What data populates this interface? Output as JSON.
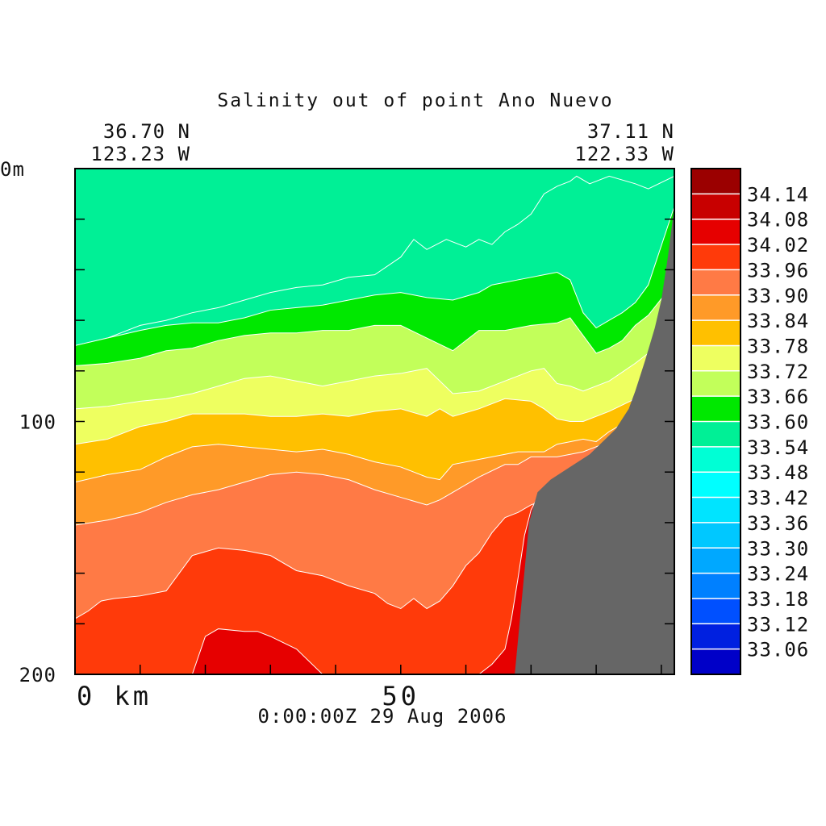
{
  "chart_data": {
    "type": "heatmap",
    "title": "Salinity out of point Ano Nuevo",
    "start_location": {
      "lat": "36.70 N",
      "lon": "123.23 W"
    },
    "end_location": {
      "lat": "37.11 N",
      "lon": "122.33 W"
    },
    "timestamp": "0:00:00Z  29 Aug 2006",
    "x_axis": {
      "range": [
        0,
        92
      ],
      "ticks": [
        {
          "value": 0,
          "label": "0 km"
        },
        {
          "value": 50,
          "label": "50"
        }
      ],
      "minor_step": 10
    },
    "y_axis": {
      "range": [
        0,
        200
      ],
      "inverted": true,
      "ticks": [
        {
          "value": 0,
          "label": "0m"
        },
        {
          "value": 100,
          "label": "100"
        },
        {
          "value": 200,
          "label": "200"
        }
      ],
      "minor_step": 20
    },
    "colorbar": {
      "levels": [
        "34.14",
        "34.08",
        "34.02",
        "33.96",
        "33.90",
        "33.84",
        "33.78",
        "33.72",
        "33.66",
        "33.60",
        "33.54",
        "33.48",
        "33.42",
        "33.36",
        "33.30",
        "33.24",
        "33.18",
        "33.12",
        "33.06"
      ],
      "colors": [
        "#9b0000",
        "#c80000",
        "#e60000",
        "#ff3a0a",
        "#ff7a45",
        "#ff9a28",
        "#ffc000",
        "#eeff60",
        "#c2ff5a",
        "#00e800",
        "#00f096",
        "#00ffd5",
        "#00ffff",
        "#00e4ff",
        "#00c8ff",
        "#00a8ff",
        "#0080ff",
        "#0050ff",
        "#0020e0",
        "#0000c8"
      ]
    },
    "bands": [
      {
        "min": null,
        "max": 33.42,
        "profile": []
      },
      {
        "min": 33.42,
        "max": 33.48,
        "profile": []
      },
      {
        "min": 33.48,
        "max": 33.54,
        "profile": []
      },
      {
        "min": 33.54,
        "max": 33.6,
        "profile": [
          [
            0,
            70
          ],
          [
            5,
            67
          ],
          [
            10,
            62
          ],
          [
            14,
            60
          ],
          [
            18,
            57
          ],
          [
            22,
            55
          ],
          [
            26,
            52
          ],
          [
            30,
            49
          ],
          [
            34,
            47
          ],
          [
            38,
            46
          ],
          [
            42,
            43
          ],
          [
            46,
            42
          ],
          [
            50,
            35
          ],
          [
            52,
            28
          ],
          [
            54,
            32
          ],
          [
            57,
            28
          ],
          [
            60,
            31
          ],
          [
            62,
            28
          ],
          [
            64,
            30
          ],
          [
            66,
            25
          ],
          [
            68,
            22
          ],
          [
            70,
            18
          ],
          [
            72,
            10
          ],
          [
            74,
            7
          ],
          [
            76,
            5
          ],
          [
            77,
            3
          ],
          [
            79,
            6
          ],
          [
            82,
            3
          ],
          [
            86,
            6
          ],
          [
            88,
            8
          ],
          [
            92,
            3
          ]
        ]
      },
      {
        "min": 33.6,
        "max": 33.66,
        "profile": [
          [
            0,
            70
          ],
          [
            5,
            67
          ],
          [
            10,
            64
          ],
          [
            14,
            62
          ],
          [
            18,
            61
          ],
          [
            22,
            61
          ],
          [
            26,
            59
          ],
          [
            30,
            56
          ],
          [
            34,
            55
          ],
          [
            38,
            54
          ],
          [
            42,
            52
          ],
          [
            46,
            50
          ],
          [
            50,
            49
          ],
          [
            54,
            51
          ],
          [
            58,
            52
          ],
          [
            62,
            49
          ],
          [
            64,
            46
          ],
          [
            66,
            45
          ],
          [
            68,
            44
          ],
          [
            70,
            43
          ],
          [
            72,
            42
          ],
          [
            74,
            41
          ],
          [
            76,
            44
          ],
          [
            78,
            57
          ],
          [
            80,
            63
          ],
          [
            82,
            60
          ],
          [
            84,
            57
          ],
          [
            86,
            53
          ],
          [
            88,
            46
          ],
          [
            92,
            15
          ]
        ]
      },
      {
        "min": 33.66,
        "max": 33.72,
        "profile": [
          [
            0,
            78
          ],
          [
            5,
            77
          ],
          [
            10,
            75
          ],
          [
            14,
            72
          ],
          [
            18,
            71
          ],
          [
            22,
            68
          ],
          [
            26,
            66
          ],
          [
            30,
            65
          ],
          [
            34,
            65
          ],
          [
            38,
            64
          ],
          [
            42,
            64
          ],
          [
            46,
            62
          ],
          [
            50,
            62
          ],
          [
            54,
            67
          ],
          [
            58,
            72
          ],
          [
            62,
            64
          ],
          [
            66,
            64
          ],
          [
            70,
            62
          ],
          [
            74,
            61
          ],
          [
            76,
            59
          ],
          [
            78,
            66
          ],
          [
            80,
            73
          ],
          [
            82,
            71
          ],
          [
            84,
            68
          ],
          [
            86,
            62
          ],
          [
            88,
            58
          ],
          [
            92,
            45
          ]
        ]
      },
      {
        "min": 33.72,
        "max": 33.78,
        "profile": [
          [
            0,
            95
          ],
          [
            5,
            94
          ],
          [
            10,
            92
          ],
          [
            14,
            91
          ],
          [
            18,
            89
          ],
          [
            22,
            86
          ],
          [
            26,
            83
          ],
          [
            30,
            82
          ],
          [
            34,
            84
          ],
          [
            38,
            86
          ],
          [
            42,
            84
          ],
          [
            46,
            82
          ],
          [
            50,
            81
          ],
          [
            54,
            79
          ],
          [
            58,
            89
          ],
          [
            62,
            88
          ],
          [
            66,
            84
          ],
          [
            70,
            80
          ],
          [
            72,
            79
          ],
          [
            74,
            85
          ],
          [
            76,
            86
          ],
          [
            78,
            88
          ],
          [
            82,
            84
          ],
          [
            86,
            77
          ],
          [
            88,
            73
          ],
          [
            92,
            65
          ]
        ]
      },
      {
        "min": 33.78,
        "max": 33.84,
        "profile": [
          [
            0,
            109
          ],
          [
            5,
            107
          ],
          [
            10,
            102
          ],
          [
            14,
            100
          ],
          [
            18,
            97
          ],
          [
            22,
            97
          ],
          [
            26,
            97
          ],
          [
            30,
            98
          ],
          [
            34,
            98
          ],
          [
            38,
            97
          ],
          [
            42,
            98
          ],
          [
            46,
            96
          ],
          [
            50,
            95
          ],
          [
            54,
            98
          ],
          [
            56,
            95
          ],
          [
            58,
            98
          ],
          [
            62,
            95
          ],
          [
            66,
            91
          ],
          [
            70,
            92
          ],
          [
            72,
            95
          ],
          [
            74,
            99
          ],
          [
            76,
            100
          ],
          [
            78,
            100
          ],
          [
            82,
            96
          ],
          [
            86,
            91
          ],
          [
            88,
            86
          ],
          [
            92,
            80
          ]
        ]
      },
      {
        "min": 33.84,
        "max": 33.9,
        "profile": [
          [
            0,
            124
          ],
          [
            5,
            121
          ],
          [
            10,
            119
          ],
          [
            14,
            114
          ],
          [
            18,
            110
          ],
          [
            22,
            109
          ],
          [
            26,
            110
          ],
          [
            30,
            111
          ],
          [
            34,
            112
          ],
          [
            38,
            111
          ],
          [
            42,
            113
          ],
          [
            46,
            116
          ],
          [
            50,
            118
          ],
          [
            54,
            122
          ],
          [
            56,
            123
          ],
          [
            58,
            117
          ],
          [
            62,
            115
          ],
          [
            66,
            113
          ],
          [
            68,
            112
          ],
          [
            70,
            112
          ],
          [
            72,
            112
          ],
          [
            74,
            109
          ],
          [
            76,
            108
          ],
          [
            78,
            107
          ],
          [
            80,
            108
          ],
          [
            82,
            104
          ],
          [
            86,
            98
          ],
          [
            88,
            94
          ],
          [
            92,
            88
          ]
        ]
      },
      {
        "min": 33.9,
        "max": 33.96,
        "profile": [
          [
            0,
            141
          ],
          [
            5,
            139
          ],
          [
            10,
            136
          ],
          [
            14,
            132
          ],
          [
            18,
            129
          ],
          [
            22,
            127
          ],
          [
            26,
            124
          ],
          [
            30,
            121
          ],
          [
            34,
            120
          ],
          [
            38,
            121
          ],
          [
            42,
            123
          ],
          [
            46,
            127
          ],
          [
            50,
            130
          ],
          [
            54,
            133
          ],
          [
            56,
            131
          ],
          [
            58,
            128
          ],
          [
            62,
            122
          ],
          [
            66,
            117
          ],
          [
            68,
            117
          ],
          [
            70,
            114
          ],
          [
            72,
            114
          ],
          [
            74,
            114
          ],
          [
            76,
            113
          ],
          [
            78,
            112
          ],
          [
            82,
            108
          ],
          [
            86,
            104
          ],
          [
            88,
            100
          ],
          [
            92,
            95
          ]
        ]
      },
      {
        "min": 33.96,
        "max": 34.02,
        "profile": [
          [
            0,
            178
          ],
          [
            2,
            175
          ],
          [
            4,
            171
          ],
          [
            6,
            170
          ],
          [
            10,
            169
          ],
          [
            14,
            167
          ],
          [
            18,
            153
          ],
          [
            22,
            150
          ],
          [
            26,
            151
          ],
          [
            30,
            153
          ],
          [
            34,
            159
          ],
          [
            38,
            161
          ],
          [
            42,
            165
          ],
          [
            46,
            168
          ],
          [
            48,
            172
          ],
          [
            50,
            174
          ],
          [
            52,
            170
          ],
          [
            54,
            174
          ],
          [
            56,
            171
          ],
          [
            58,
            165
          ],
          [
            60,
            157
          ],
          [
            62,
            152
          ],
          [
            64,
            144
          ],
          [
            66,
            138
          ],
          [
            68,
            136
          ],
          [
            70,
            133
          ],
          [
            72,
            131
          ],
          [
            74,
            128
          ],
          [
            76,
            126
          ],
          [
            78,
            123
          ],
          [
            80,
            120
          ],
          [
            82,
            116
          ],
          [
            84,
            112
          ],
          [
            86,
            106
          ],
          [
            88,
            102
          ],
          [
            92,
            97
          ]
        ]
      },
      {
        "min": 34.02,
        "max": 34.08,
        "profile": [
          [
            0,
            200
          ],
          [
            18,
            200
          ],
          [
            20,
            185
          ],
          [
            22,
            182
          ],
          [
            26,
            183
          ],
          [
            28,
            183
          ],
          [
            30,
            185
          ],
          [
            34,
            190
          ],
          [
            38,
            200
          ],
          [
            62,
            200
          ],
          [
            64,
            196
          ],
          [
            66,
            190
          ],
          [
            67,
            178
          ],
          [
            68,
            162
          ],
          [
            69,
            145
          ],
          [
            70,
            135
          ],
          [
            71,
            130
          ],
          [
            72,
            128
          ],
          [
            76,
            124
          ],
          [
            80,
            122
          ],
          [
            84,
            118
          ],
          [
            88,
            108
          ],
          [
            92,
            97
          ]
        ]
      },
      {
        "min": 34.08,
        "max": null,
        "profile": []
      }
    ]
  },
  "bathymetry": {
    "label": "land",
    "color": "#666666",
    "profile": [
      [
        67.5,
        200
      ],
      [
        69.7,
        140
      ],
      [
        71,
        128
      ],
      [
        73,
        123
      ],
      [
        76,
        118
      ],
      [
        79,
        113
      ],
      [
        81,
        108
      ],
      [
        83,
        103
      ],
      [
        85,
        95
      ],
      [
        86,
        88
      ],
      [
        87.5,
        76
      ],
      [
        89,
        63
      ],
      [
        90,
        52
      ],
      [
        91,
        35
      ],
      [
        92,
        15
      ],
      [
        92,
        200
      ]
    ]
  }
}
